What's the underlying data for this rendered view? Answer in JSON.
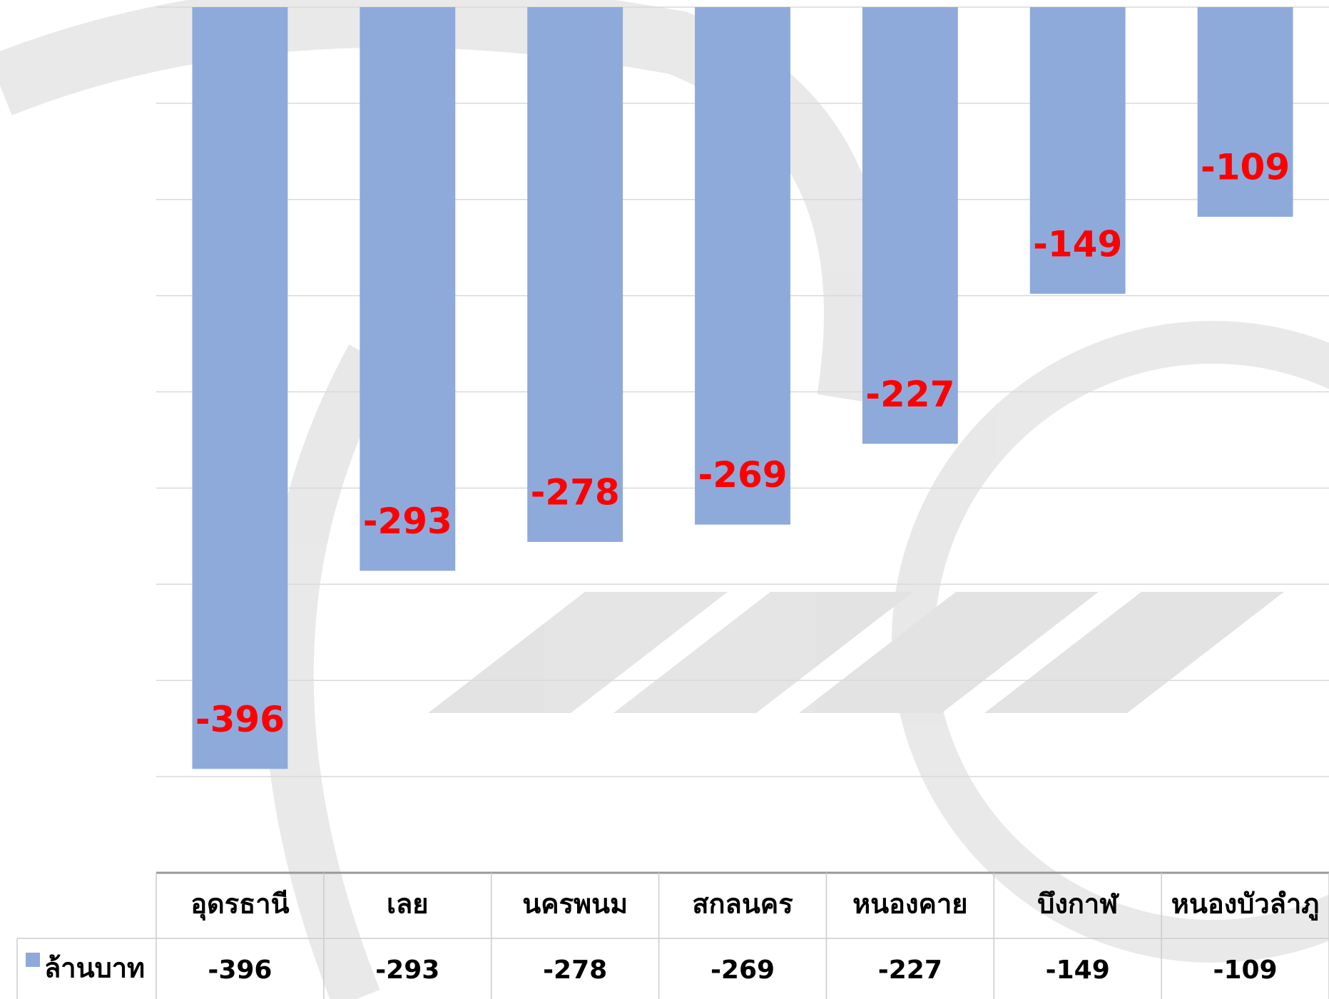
{
  "chart_data": {
    "type": "bar",
    "categories": [
      "อุดรธานี",
      "เลย",
      "นครพนม",
      "สกลนคร",
      "หนองคาย",
      "บึงกาฬ",
      "หนองบัวลำภู"
    ],
    "series": [
      {
        "name": "ล้านบาท",
        "color": "#8eaadb",
        "values": [
          -396,
          -293,
          -278,
          -269,
          -227,
          -149,
          -109
        ]
      }
    ],
    "ylim": [
      -450,
      0
    ],
    "yticks": [
      0,
      -50,
      -100,
      -150,
      -200,
      -250,
      -300,
      -350,
      -400,
      -450
    ],
    "grid": true,
    "label_color": "#ff0000"
  }
}
